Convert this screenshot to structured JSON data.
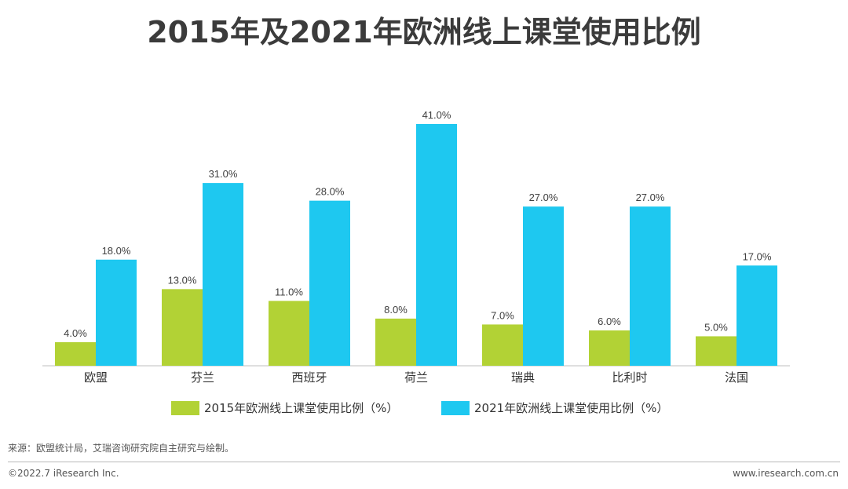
{
  "title": "2015年及2021年欧洲线上课堂使用比例",
  "chart_data": {
    "type": "bar",
    "categories": [
      "欧盟",
      "芬兰",
      "西班牙",
      "荷兰",
      "瑞典",
      "比利时",
      "法国"
    ],
    "series": [
      {
        "name": "2015年欧洲线上课堂使用比例（%）",
        "color": "#b2d235",
        "values": [
          4.0,
          13.0,
          11.0,
          8.0,
          7.0,
          6.0,
          5.0
        ]
      },
      {
        "name": "2021年欧洲线上课堂使用比例（%）",
        "color": "#1ec8f0",
        "values": [
          18.0,
          31.0,
          28.0,
          41.0,
          27.0,
          27.0,
          17.0
        ]
      }
    ],
    "data_label_format": "%",
    "ylim": [
      0,
      41
    ],
    "grid": false,
    "legend": "bottom"
  },
  "footer": {
    "source": "来源：欧盟统计局，艾瑞咨询研究院自主研究与绘制。",
    "copyright": "©2022.7 iResearch Inc.",
    "website": "www.iresearch.com.cn"
  }
}
